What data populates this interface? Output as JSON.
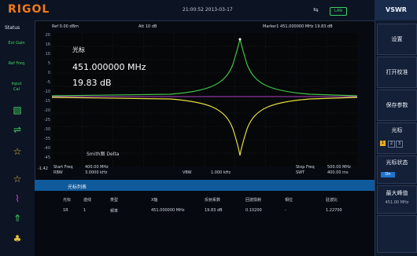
{
  "brand": {
    "logo": "RIGOL"
  },
  "topbar": {
    "datetime": "21:00:52 2013-03-17",
    "usb_icon": "usb-icon",
    "lan_badge": "LAN"
  },
  "status": {
    "title": "Status",
    "items": [
      "Ext Gain",
      "Ref Freq",
      "Input Cal"
    ]
  },
  "header": {
    "ref_level": "Ref 0.00 dBm",
    "att": "Att 10 dB",
    "marker_readout": "Marker1 451.000000 MHz 19.83 dB"
  },
  "y_axis": {
    "ticks": [
      "20",
      "16",
      "10",
      "5",
      "0",
      "-5",
      "-10",
      "-15",
      "-20",
      "-25",
      "-30",
      "-35",
      "-40",
      "-45"
    ]
  },
  "marker": {
    "title": "光标",
    "frequency": "451.000000 MHz",
    "value": "19.83 dB"
  },
  "trace_note": {
    "a": "Smith图 Delta",
    "b": ""
  },
  "bottom_info": {
    "start_label": "Start Freq",
    "start_value": "400.00 MHz",
    "rbw_label": "RBW",
    "rbw_value": "3.0000 kHz",
    "vbw_label": "VBW",
    "vbw_value": "1.000 kHz",
    "stop_label": "Stop Freq",
    "stop_value": "500.00 MHz",
    "swt_label": "SWT",
    "swt_value": "400.00 ms",
    "left_value": "-1.42"
  },
  "marker_table": {
    "title": "光标列表",
    "headers": [
      "光标",
      "迹线",
      "类型",
      "X轴",
      "反射系数",
      "回波损耗",
      "相位",
      "驻波比"
    ],
    "row": [
      "1R",
      "1",
      "频率",
      "451.000000 MHz",
      "19.83 dB",
      "0.10200",
      "-",
      "1.22700"
    ]
  },
  "softkeys": {
    "title": "VSWR",
    "keys": [
      "设置",
      "打开校准",
      "保存参数",
      "光标",
      "光标状态",
      "最大峰值",
      ""
    ],
    "marker_sub": [
      "1",
      "2",
      "3"
    ],
    "state_on": "On",
    "peak_value": "451.00 MHz"
  },
  "colors": {
    "accent": "#f07a18",
    "trace_green": "#44c24a",
    "trace_yellow": "#e8e240",
    "table_band": "#0f5a9a"
  }
}
